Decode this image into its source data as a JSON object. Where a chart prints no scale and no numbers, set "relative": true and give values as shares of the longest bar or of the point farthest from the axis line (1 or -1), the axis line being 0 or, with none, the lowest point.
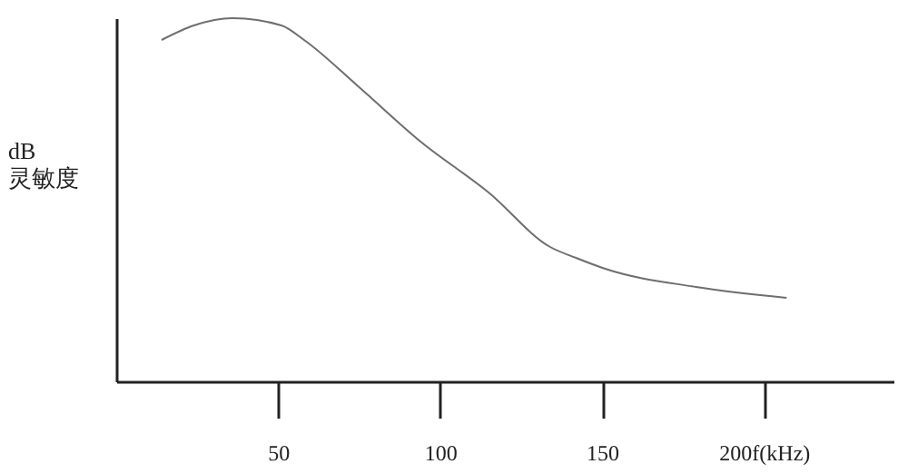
{
  "chart_data": {
    "type": "line",
    "ylabel": "dB\n灵敏度",
    "relative": true,
    "xlim": [
      0,
      240
    ],
    "xticks": [
      50,
      100,
      {
        "value": 200,
        "label": "200f(kHz)"
      },
      150
    ],
    "series": [
      {
        "color": "#6e6e6e",
        "x": [
          14,
          24,
          36,
          51,
          58,
          75,
          94,
          115,
          134,
          142,
          151,
          179,
          207
        ],
        "values": [
          0.94,
          0.98,
          1.0,
          0.98,
          0.94,
          0.81,
          0.66,
          0.52,
          0.37,
          0.34,
          0.31,
          0.26,
          0.23
        ]
      }
    ],
    "grid": false,
    "marker": "none",
    "line_style": "solid"
  }
}
